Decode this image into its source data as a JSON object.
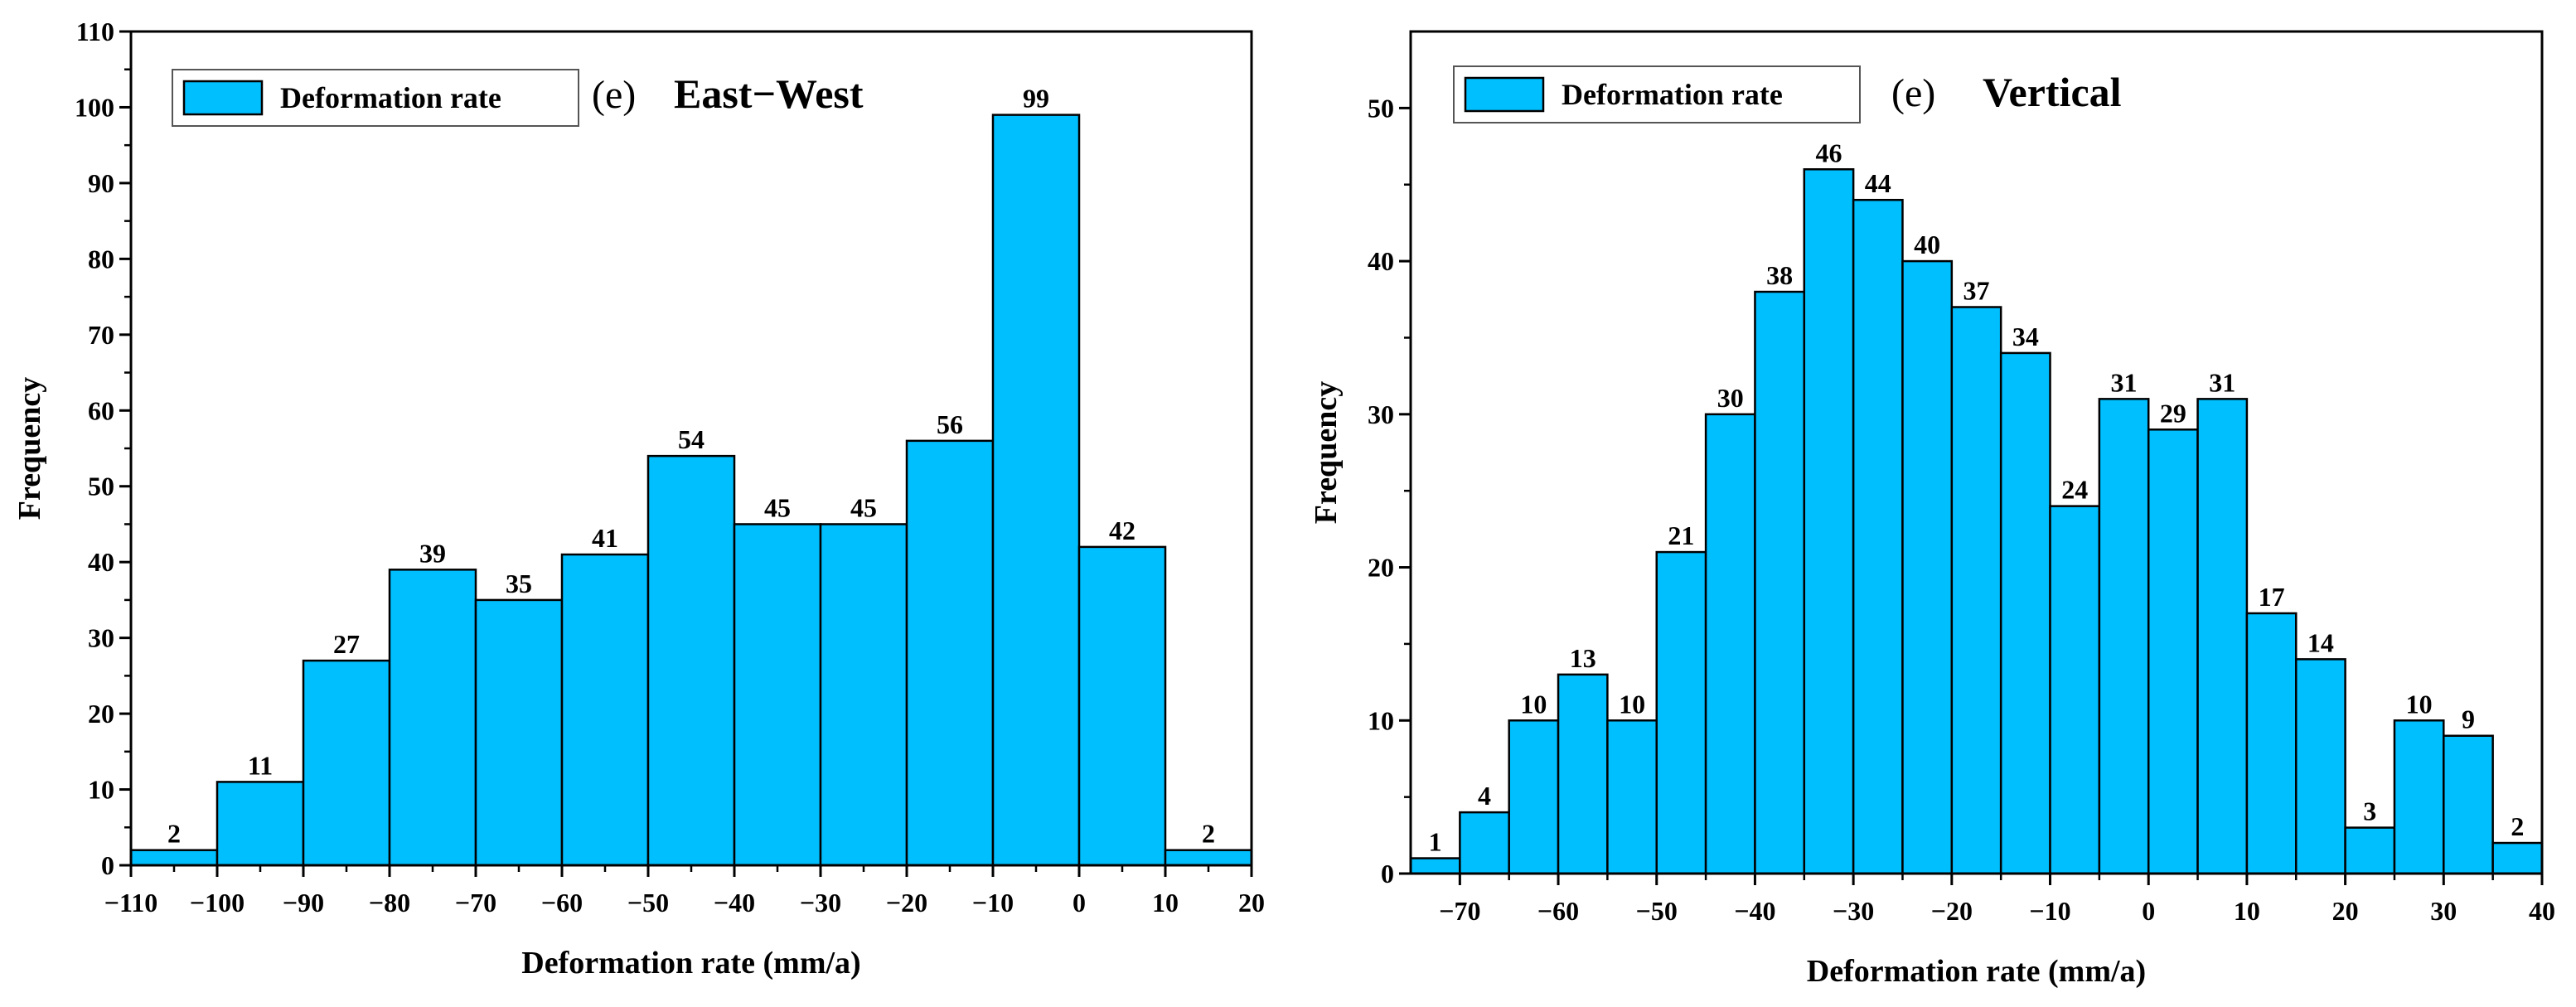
{
  "chart_data": [
    {
      "type": "bar",
      "panel_label": "(e)",
      "title": "East−West",
      "legend": {
        "label": "Deformation rate",
        "placement": "top-left"
      },
      "xlabel": "Deformation rate (mm/a)",
      "ylabel": "Frequency",
      "xlim": [
        -110,
        20
      ],
      "ylim": [
        0,
        110
      ],
      "xticks": [
        "−110",
        "−100",
        "−90",
        "−80",
        "−70",
        "−60",
        "−50",
        "−40",
        "−30",
        "−20",
        "−10",
        "0",
        "10",
        "20"
      ],
      "xtick_values": [
        -110,
        -100,
        -90,
        -80,
        -70,
        -60,
        -50,
        -40,
        -30,
        -20,
        -10,
        0,
        10,
        20
      ],
      "yticks": [
        "0",
        "10",
        "20",
        "30",
        "40",
        "50",
        "60",
        "70",
        "80",
        "90",
        "100",
        "110"
      ],
      "ytick_values": [
        0,
        10,
        20,
        30,
        40,
        50,
        60,
        70,
        80,
        90,
        100,
        110
      ],
      "bin_edges": [
        -110,
        -100,
        -90,
        -80,
        -70,
        -60,
        -50,
        -40,
        -30,
        -20,
        -10,
        0,
        10,
        20
      ],
      "values": [
        2,
        11,
        27,
        39,
        35,
        41,
        54,
        45,
        45,
        56,
        99,
        42,
        2
      ],
      "colors": {
        "bar": "#00bfff",
        "edge": "#000000"
      }
    },
    {
      "type": "bar",
      "panel_label": "(e)",
      "title": "Vertical",
      "legend": {
        "label": "Deformation rate",
        "placement": "top-left"
      },
      "xlabel": "Deformation rate (mm/a)",
      "ylabel": "Frequency",
      "xlim": [
        -75,
        40
      ],
      "ylim": [
        0,
        55
      ],
      "xticks": [
        "−70",
        "−60",
        "−50",
        "−40",
        "−30",
        "−20",
        "−10",
        "0",
        "10",
        "20",
        "30",
        "40"
      ],
      "xtick_values": [
        -70,
        -60,
        -50,
        -40,
        -30,
        -20,
        -10,
        0,
        10,
        20,
        30,
        40
      ],
      "yticks": [
        "0",
        "10",
        "20",
        "30",
        "40",
        "50"
      ],
      "ytick_values": [
        0,
        10,
        20,
        30,
        40,
        50
      ],
      "bin_edges": [
        -75,
        -70,
        -65,
        -60,
        -55,
        -50,
        -45,
        -40,
        -35,
        -30,
        -25,
        -20,
        -15,
        -10,
        -5,
        0,
        5,
        10,
        15,
        20,
        25,
        30,
        35,
        40
      ],
      "values": [
        1,
        4,
        10,
        13,
        10,
        21,
        30,
        38,
        46,
        44,
        40,
        37,
        34,
        24,
        31,
        29,
        31,
        17,
        14,
        3,
        10,
        9,
        2
      ],
      "colors": {
        "bar": "#00bfff",
        "edge": "#000000"
      }
    }
  ]
}
